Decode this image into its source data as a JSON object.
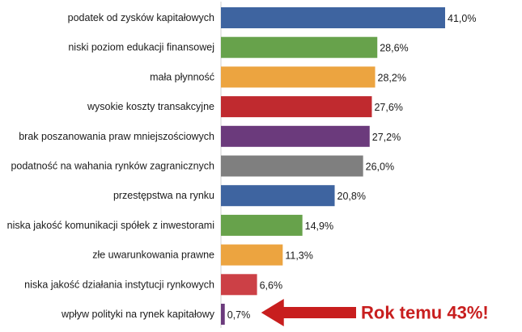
{
  "chart_data": {
    "type": "bar",
    "orientation": "horizontal",
    "categories": [
      "podatek od zysków kapitałowych",
      "niski poziom edukacji finansowej",
      "mała płynność",
      "wysokie koszty transakcyjne",
      "brak poszanowania praw mniejszościowych",
      "podatność na wahania rynków zagranicznych",
      "przestępstwa na rynku",
      "niska jakość komunikacji spółek z inwestorami",
      "złe uwarunkowania prawne",
      "niska jakość działania instytucji rynkowych",
      "wpływ polityki na rynek kapitałowy"
    ],
    "values": [
      41.0,
      28.6,
      28.2,
      27.6,
      27.2,
      26.0,
      20.8,
      14.9,
      11.3,
      6.6,
      0.7
    ],
    "value_labels": [
      "41,0%",
      "28,6%",
      "28,2%",
      "27,6%",
      "27,2%",
      "26,0%",
      "20,8%",
      "14,9%",
      "11,3%",
      "6,6%",
      "0,7%"
    ],
    "colors": [
      "#3e64a0",
      "#67a24b",
      "#eca440",
      "#c02a2f",
      "#6b3a7c",
      "#7f7f7f",
      "#3e64a0",
      "#67a24b",
      "#eca440",
      "#cc4046",
      "#6b3a7c"
    ],
    "xlim": [
      0,
      41.0
    ],
    "grid": false,
    "legend": "none",
    "annotation": {
      "text": "Rok temu 43%!",
      "color": "#c81e1e",
      "points_to": "wpływ polityki na rynek kapitałowy"
    }
  }
}
